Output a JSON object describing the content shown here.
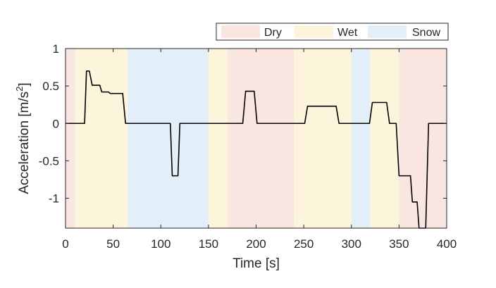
{
  "chart_data": {
    "type": "line",
    "xlabel": "Time [s]",
    "ylabel_main": "Acceleration [m/s",
    "ylabel_sup": "2",
    "ylabel_close": "]",
    "xlim": [
      0,
      400
    ],
    "ylim": [
      -1.4,
      1
    ],
    "xticks": [
      0,
      50,
      100,
      150,
      200,
      250,
      300,
      350,
      400
    ],
    "xtick_labels": [
      "0",
      "50",
      "100",
      "150",
      "200",
      "250",
      "300",
      "350",
      "400"
    ],
    "yticks": [
      1,
      0.5,
      0,
      -0.5,
      -1
    ],
    "ytick_labels": [
      "1",
      "0.5",
      "0",
      "-0.5",
      "-1"
    ],
    "grid": false,
    "legend_position": "top-right",
    "legend": [
      {
        "label": "Dry",
        "color": "#f9e6e1"
      },
      {
        "label": "Wet",
        "color": "#fdf4dc"
      },
      {
        "label": "Snow",
        "color": "#e2eef8"
      }
    ],
    "regions": [
      {
        "start": 0,
        "end": 10,
        "condition": "Dry"
      },
      {
        "start": 10,
        "end": 65,
        "condition": "Wet"
      },
      {
        "start": 65,
        "end": 150,
        "condition": "Snow"
      },
      {
        "start": 150,
        "end": 170,
        "condition": "Wet"
      },
      {
        "start": 170,
        "end": 240,
        "condition": "Dry"
      },
      {
        "start": 240,
        "end": 300,
        "condition": "Wet"
      },
      {
        "start": 300,
        "end": 320,
        "condition": "Snow"
      },
      {
        "start": 320,
        "end": 350,
        "condition": "Wet"
      },
      {
        "start": 350,
        "end": 400,
        "condition": "Dry"
      }
    ],
    "series": [
      {
        "name": "Acceleration",
        "color": "#000000",
        "points": [
          [
            0,
            0
          ],
          [
            20,
            0
          ],
          [
            22,
            0.7
          ],
          [
            25,
            0.7
          ],
          [
            28,
            0.51
          ],
          [
            36,
            0.51
          ],
          [
            38,
            0.42
          ],
          [
            45,
            0.42
          ],
          [
            47,
            0.4
          ],
          [
            60,
            0.4
          ],
          [
            63,
            0
          ],
          [
            110,
            0
          ],
          [
            112,
            -0.7
          ],
          [
            118,
            -0.7
          ],
          [
            120,
            0
          ],
          [
            186,
            0
          ],
          [
            189,
            0.43
          ],
          [
            198,
            0.43
          ],
          [
            201,
            0
          ],
          [
            251,
            0
          ],
          [
            254,
            0.23
          ],
          [
            284,
            0.23
          ],
          [
            287,
            0
          ],
          [
            319,
            0
          ],
          [
            322,
            0.28
          ],
          [
            337,
            0.28
          ],
          [
            340,
            0
          ],
          [
            347,
            0
          ],
          [
            350,
            -0.7
          ],
          [
            362,
            -0.7
          ],
          [
            364,
            -1.05
          ],
          [
            369,
            -1.05
          ],
          [
            371,
            -1.4
          ],
          [
            378,
            -1.4
          ],
          [
            381,
            0
          ],
          [
            400,
            0
          ]
        ]
      }
    ]
  }
}
